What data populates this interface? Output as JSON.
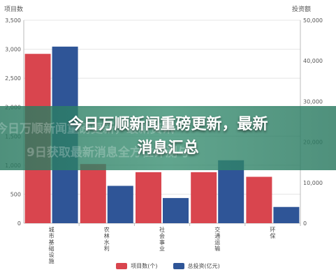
{
  "chart_data": {
    "type": "bar",
    "categories": [
      "城市基础设施",
      "农林水利",
      "社会事业",
      "交通运输",
      "环保"
    ],
    "series": [
      {
        "name": "项目数(个)",
        "axis": "left",
        "color": "#d9454e",
        "values": [
          2920,
          1020,
          880,
          880,
          800
        ]
      },
      {
        "name": "总投资(亿元)",
        "axis": "right",
        "color": "#2f5597",
        "values": [
          43500,
          9200,
          6200,
          15500,
          4000
        ]
      }
    ],
    "y_left": {
      "label": "项目数",
      "ticks": [
        "0",
        "500",
        "1,000",
        "1,500",
        "2,000",
        "2,500",
        "3,000",
        "3,500"
      ],
      "range": [
        0,
        3500
      ]
    },
    "y_right": {
      "label": "投资额",
      "ticks": [
        "0",
        "10,000",
        "20,000",
        "30,000",
        "40,000",
        "50,000"
      ],
      "range": [
        0,
        50000
      ]
    },
    "grid": true,
    "legend_position": "bottom-center"
  },
  "overlay": {
    "headline_line1": "今日万顺新闻重磅更新，最新",
    "headline_line2": "消息汇总",
    "echo_line1": "今日万顺新闻重磅更新，最新资讯",
    "echo_line2": "9日获取最新消息全方位评测与"
  }
}
